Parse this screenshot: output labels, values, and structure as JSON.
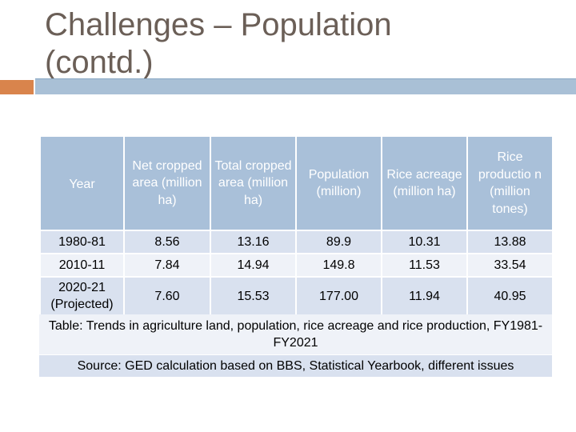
{
  "slide": {
    "title_line1": "Challenges – Population",
    "title_line2": "(contd.)",
    "accent_color": "#d9844c",
    "header_color": "#a9c0d9"
  },
  "table": {
    "headers": [
      "Year",
      "Net cropped area (million ha)",
      "Total cropped area (million ha)",
      "Population (million)",
      "Rice acreage (million ha)",
      "Rice productio n (million tones)"
    ],
    "rows": [
      [
        "1980-81",
        "8.56",
        "13.16",
        "89.9",
        "10.31",
        "13.88"
      ],
      [
        "2010-11",
        "7.84",
        "14.94",
        "149.8",
        "11.53",
        "33.54"
      ],
      [
        "2020-21 (Projected)",
        "7.60",
        "15.53",
        "177.00",
        "11.94",
        "40.95"
      ]
    ]
  },
  "caption": "Table: Trends in agriculture land, population, rice acreage and rice production, FY1981-FY2021",
  "source": "Source: GED calculation based on BBS, Statistical Yearbook, different issues"
}
